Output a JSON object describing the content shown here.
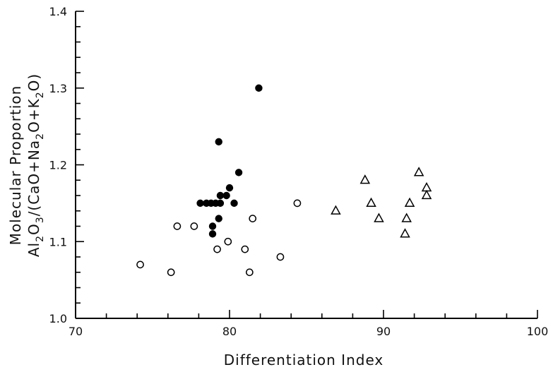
{
  "chart_data": {
    "type": "scatter",
    "xlabel": "Differentiation Index",
    "ylabel_line1": "Molecular Proportion",
    "ylabel_line2": {
      "parts": [
        "Al",
        "2",
        "O",
        "3",
        "/(CaO+Na",
        "2",
        "O+K",
        "2",
        "O)"
      ]
    },
    "xlim": [
      70,
      100
    ],
    "ylim": [
      1.0,
      1.4
    ],
    "x_major_ticks": [
      70,
      80,
      90,
      100
    ],
    "x_minor_step": 2,
    "y_major_ticks": [
      1.0,
      1.1,
      1.2,
      1.3,
      1.4
    ],
    "y_major_tick_labels": [
      "1.0",
      "1.1",
      "1.2",
      "1.3",
      "1.4"
    ],
    "y_minor_step": 0.02,
    "grid": false,
    "series": [
      {
        "marker": "filled-circle",
        "color": "#000000",
        "points": [
          [
            78.1,
            1.15
          ],
          [
            78.5,
            1.15
          ],
          [
            78.8,
            1.15
          ],
          [
            79.1,
            1.15
          ],
          [
            79.4,
            1.15
          ],
          [
            78.9,
            1.12
          ],
          [
            78.9,
            1.11
          ],
          [
            79.3,
            1.13
          ],
          [
            79.4,
            1.16
          ],
          [
            79.8,
            1.16
          ],
          [
            80.0,
            1.17
          ],
          [
            80.3,
            1.15
          ],
          [
            80.6,
            1.19
          ],
          [
            79.3,
            1.23
          ],
          [
            81.9,
            1.3
          ]
        ]
      },
      {
        "marker": "open-circle",
        "color": "#000000",
        "points": [
          [
            74.2,
            1.07
          ],
          [
            76.2,
            1.06
          ],
          [
            76.6,
            1.12
          ],
          [
            77.7,
            1.12
          ],
          [
            79.2,
            1.09
          ],
          [
            79.9,
            1.1
          ],
          [
            81.0,
            1.09
          ],
          [
            81.5,
            1.13
          ],
          [
            81.3,
            1.06
          ],
          [
            83.3,
            1.08
          ],
          [
            84.4,
            1.15
          ]
        ]
      },
      {
        "marker": "open-triangle",
        "color": "#000000",
        "points": [
          [
            86.9,
            1.14
          ],
          [
            88.8,
            1.18
          ],
          [
            89.2,
            1.15
          ],
          [
            89.7,
            1.13
          ],
          [
            91.4,
            1.11
          ],
          [
            91.5,
            1.13
          ],
          [
            91.7,
            1.15
          ],
          [
            92.3,
            1.19
          ],
          [
            92.8,
            1.17
          ],
          [
            92.8,
            1.16
          ]
        ]
      }
    ]
  }
}
